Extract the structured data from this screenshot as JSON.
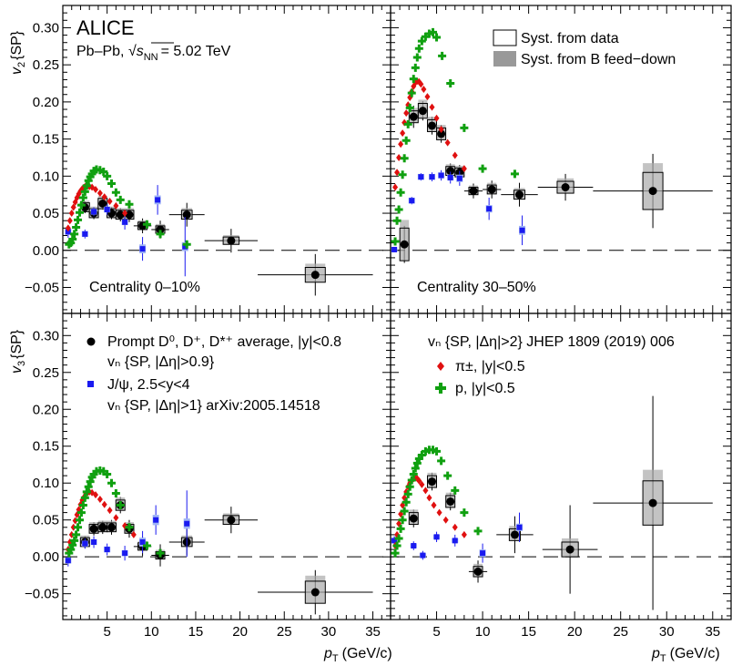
{
  "page": {
    "experiment": "ALICE",
    "system_text": "Pb–Pb,",
    "energy_sqrt": "s",
    "energy_sub": "NN",
    "energy_value": "= 5.02 TeV"
  },
  "axes": {
    "x_label_main": "p",
    "x_label_sub": "T",
    "x_label_units": "(GeV/c)",
    "y_label_top": "v",
    "y_label_top_sub": "2",
    "y_label_top_suffix": "{SP}",
    "y_label_bottom": "v",
    "y_label_bottom_sub": "3",
    "y_label_bottom_suffix": "{SP}",
    "x_ticks": [
      "5",
      "10",
      "15",
      "20",
      "25",
      "30",
      "35"
    ],
    "y_ticks": [
      "−0.05",
      "0.00",
      "0.05",
      "0.10",
      "0.15",
      "0.20",
      "0.25",
      "0.30"
    ]
  },
  "centrality_labels": [
    "Centrality 0–10%",
    "Centrality 30–50%"
  ],
  "legend_syst": {
    "data": "Syst. from data",
    "feeddown": "Syst. from B feed−down"
  },
  "legend_left": {
    "d_line1": "Prompt D⁰, D⁺, D*⁺ average, |y|<0.8",
    "d_line2": "vₙ {SP, |Δη|>0.9}",
    "jpsi_line1": "J/ψ, 2.5<y<4",
    "jpsi_line2": "vₙ {SP, |Δη|>1} arXiv:2005.14518"
  },
  "legend_right": {
    "header": "vₙ {SP, |Δη|>2} JHEP 1809 (2019) 006",
    "pion": "π±, |y|<0.5",
    "proton": "p, |y|<0.5"
  },
  "colors": {
    "dmeson": "#000000",
    "jpsi": "#1a1af0",
    "pion": "#e01010",
    "proton": "#10a010",
    "syst_data": "#000000",
    "syst_feeddown": "#999999"
  },
  "chart_data": [
    {
      "type": "scatter",
      "panel": "v2, centrality 0-10%",
      "xlim": [
        0,
        37
      ],
      "ylim": [
        -0.085,
        0.33
      ],
      "series": [
        {
          "name": "Prompt D0, D+, D*+ average, |y|<0.8",
          "x": [
            2.5,
            3.5,
            4.5,
            5.5,
            6.5,
            7.5,
            9,
            11,
            14,
            19,
            28.5
          ],
          "y": [
            0.058,
            0.05,
            0.063,
            0.05,
            0.048,
            0.048,
            0.033,
            0.028,
            0.048,
            0.013,
            -0.033
          ],
          "yerr": [
            0.008,
            0.008,
            0.008,
            0.008,
            0.009,
            0.01,
            0.01,
            0.012,
            0.016,
            0.016,
            0.028
          ],
          "xerr": [
            0.5,
            0.5,
            0.5,
            0.5,
            0.5,
            0.5,
            1.0,
            1.0,
            2.0,
            3.0,
            6.5
          ],
          "syst": [
            0.006,
            0.006,
            0.007,
            0.006,
            0.006,
            0.006,
            0.005,
            0.005,
            0.006,
            0.005,
            0.01
          ]
        },
        {
          "name": "J/ψ, 2.5<y<4",
          "x": [
            0.6,
            2.5,
            3.5,
            5.0,
            7.0,
            9.0,
            10.7,
            13.8
          ],
          "y": [
            0.025,
            0.022,
            0.052,
            0.055,
            0.038,
            0.002,
            0.068,
            0.005
          ],
          "yerr": [
            0.008,
            0.006,
            0.006,
            0.007,
            0.01,
            0.016,
            0.02,
            0.04
          ],
          "syst": [
            0.004,
            0.004,
            0.004,
            0.004,
            0.004,
            0.006,
            0.006,
            0.006
          ]
        },
        {
          "name": "π±, |y|<0.5",
          "x": [
            0.6,
            0.8,
            1.0,
            1.2,
            1.4,
            1.6,
            1.8,
            2.0,
            2.2,
            2.4,
            2.6,
            2.8,
            3.0,
            3.3,
            3.7,
            4.2,
            4.7,
            5.3,
            6.0,
            7.0
          ],
          "y": [
            0.03,
            0.04,
            0.05,
            0.058,
            0.065,
            0.071,
            0.076,
            0.08,
            0.083,
            0.085,
            0.087,
            0.087,
            0.086,
            0.085,
            0.082,
            0.077,
            0.072,
            0.066,
            0.06,
            0.05
          ]
        },
        {
          "name": "p, |y|<0.5",
          "x": [
            0.7,
            0.9,
            1.1,
            1.3,
            1.5,
            1.7,
            1.9,
            2.1,
            2.3,
            2.5,
            2.7,
            2.9,
            3.1,
            3.3,
            3.5,
            3.8,
            4.2,
            4.6,
            5.0,
            5.5,
            6.0,
            6.5,
            7.5,
            9.5,
            11.0,
            14.0
          ],
          "y": [
            0.008,
            0.01,
            0.015,
            0.022,
            0.031,
            0.041,
            0.051,
            0.061,
            0.071,
            0.079,
            0.087,
            0.094,
            0.099,
            0.103,
            0.107,
            0.109,
            0.108,
            0.106,
            0.1,
            0.09,
            0.078,
            0.068,
            0.062,
            0.035,
            0.022,
            0.008
          ]
        }
      ]
    },
    {
      "type": "scatter",
      "panel": "v2, centrality 30-50%",
      "xlim": [
        0,
        37
      ],
      "ylim": [
        -0.085,
        0.33
      ],
      "series": [
        {
          "name": "Prompt D0, D+, D*+ average, |y|<0.8",
          "x": [
            1.5,
            2.5,
            3.5,
            4.5,
            5.5,
            6.5,
            7.5,
            9,
            11,
            14,
            19,
            28.5
          ],
          "y": [
            0.008,
            0.18,
            0.188,
            0.168,
            0.157,
            0.107,
            0.105,
            0.08,
            0.082,
            0.075,
            0.085,
            0.08
          ],
          "yerr": [
            0.025,
            0.015,
            0.013,
            0.012,
            0.012,
            0.01,
            0.01,
            0.01,
            0.012,
            0.016,
            0.018,
            0.05
          ],
          "xerr": [
            0.5,
            0.5,
            0.5,
            0.5,
            0.5,
            0.5,
            0.5,
            1.0,
            1.0,
            2.0,
            3.0,
            6.5
          ],
          "syst": [
            0.022,
            0.008,
            0.01,
            0.008,
            0.008,
            0.006,
            0.006,
            0.005,
            0.006,
            0.006,
            0.008,
            0.025
          ]
        },
        {
          "name": "J/ψ, 2.5<y<4",
          "x": [
            0.4,
            2.3,
            3.3,
            4.5,
            5.5,
            6.5,
            7.5,
            10.7,
            14.3
          ],
          "y": [
            0.001,
            0.067,
            0.099,
            0.099,
            0.101,
            0.098,
            0.097,
            0.056,
            0.027
          ],
          "yerr": [
            0.003,
            0.005,
            0.005,
            0.006,
            0.007,
            0.008,
            0.01,
            0.015,
            0.02
          ],
          "syst": [
            0.003,
            0.004,
            0.004,
            0.004,
            0.004,
            0.004,
            0.005,
            0.005,
            0.006
          ]
        },
        {
          "name": "π±, |y|<0.5",
          "x": [
            0.5,
            0.7,
            0.9,
            1.1,
            1.3,
            1.5,
            1.7,
            1.9,
            2.1,
            2.3,
            2.5,
            2.7,
            2.9,
            3.1,
            3.3,
            3.6,
            4.0,
            4.5,
            5.0,
            5.5,
            6.2,
            7.0,
            8.0
          ],
          "y": [
            0.085,
            0.105,
            0.125,
            0.143,
            0.158,
            0.172,
            0.185,
            0.196,
            0.206,
            0.214,
            0.221,
            0.226,
            0.228,
            0.227,
            0.224,
            0.217,
            0.207,
            0.193,
            0.178,
            0.163,
            0.145,
            0.128,
            0.11
          ]
        },
        {
          "name": "p, |y|<0.5",
          "x": [
            0.5,
            0.7,
            0.9,
            1.1,
            1.3,
            1.5,
            1.7,
            1.9,
            2.1,
            2.3,
            2.5,
            2.7,
            2.9,
            3.1,
            3.4,
            3.8,
            4.2,
            4.6,
            5.0,
            5.6,
            6.5,
            8.0,
            10.0,
            13.5
          ],
          "y": [
            0.012,
            0.04,
            0.055,
            0.078,
            0.102,
            0.124,
            0.148,
            0.17,
            0.192,
            0.212,
            0.231,
            0.246,
            0.26,
            0.272,
            0.282,
            0.288,
            0.292,
            0.294,
            0.287,
            0.262,
            0.225,
            0.165,
            0.11,
            0.103
          ]
        }
      ]
    },
    {
      "type": "scatter",
      "panel": "v3, centrality 0-10%",
      "xlim": [
        0,
        37
      ],
      "ylim": [
        -0.085,
        0.33
      ],
      "series": [
        {
          "name": "Prompt D0, D+, D*+ average, |y|<0.8",
          "x": [
            2.5,
            3.5,
            4.5,
            5.5,
            6.5,
            7.5,
            9,
            11,
            14,
            19,
            28.5
          ],
          "y": [
            0.02,
            0.038,
            0.04,
            0.04,
            0.07,
            0.038,
            0.014,
            0.002,
            0.02,
            0.05,
            -0.048
          ],
          "yerr": [
            0.008,
            0.009,
            0.009,
            0.01,
            0.011,
            0.012,
            0.013,
            0.015,
            0.018,
            0.018,
            0.03
          ],
          "xerr": [
            0.5,
            0.5,
            0.5,
            0.5,
            0.5,
            0.5,
            1.0,
            1.0,
            2.0,
            3.0,
            6.5
          ],
          "syst": [
            0.006,
            0.006,
            0.006,
            0.006,
            0.007,
            0.006,
            0.005,
            0.005,
            0.006,
            0.006,
            0.015
          ]
        },
        {
          "name": "J/ψ, 2.5<y<4",
          "x": [
            0.6,
            2.5,
            3.5,
            5.0,
            7.0,
            9.0,
            10.5,
            14.0
          ],
          "y": [
            -0.005,
            0.018,
            0.02,
            0.01,
            0.005,
            0.02,
            0.05,
            0.045
          ],
          "yerr": [
            0.008,
            0.007,
            0.008,
            0.008,
            0.01,
            0.015,
            0.02,
            0.045
          ],
          "syst": [
            0.004,
            0.004,
            0.004,
            0.004,
            0.004,
            0.006,
            0.007,
            0.007
          ]
        },
        {
          "name": "π±, |y|<0.5",
          "x": [
            0.6,
            0.8,
            1.0,
            1.2,
            1.4,
            1.6,
            1.8,
            2.0,
            2.2,
            2.4,
            2.6,
            2.8,
            3.0,
            3.3,
            3.7,
            4.2,
            4.7,
            5.3,
            6.0,
            7.0,
            8.0
          ],
          "y": [
            0.01,
            0.02,
            0.03,
            0.04,
            0.049,
            0.057,
            0.064,
            0.071,
            0.077,
            0.081,
            0.085,
            0.087,
            0.088,
            0.087,
            0.084,
            0.078,
            0.071,
            0.063,
            0.053,
            0.042,
            0.03
          ]
        },
        {
          "name": "p, |y|<0.5",
          "x": [
            0.7,
            0.9,
            1.1,
            1.3,
            1.5,
            1.7,
            1.9,
            2.1,
            2.3,
            2.5,
            2.7,
            2.9,
            3.1,
            3.3,
            3.5,
            3.8,
            4.2,
            4.6,
            5.0,
            5.5,
            6.0,
            6.5,
            7.5,
            9.5,
            11.0
          ],
          "y": [
            0.005,
            0.01,
            0.016,
            0.022,
            0.03,
            0.04,
            0.05,
            0.06,
            0.07,
            0.08,
            0.088,
            0.095,
            0.102,
            0.108,
            0.112,
            0.116,
            0.117,
            0.116,
            0.112,
            0.1,
            0.086,
            0.07,
            0.04,
            0.015,
            0.005
          ]
        }
      ]
    },
    {
      "type": "scatter",
      "panel": "v3, centrality 30-50%",
      "xlim": [
        0,
        37
      ],
      "ylim": [
        -0.085,
        0.33
      ],
      "series": [
        {
          "name": "Prompt D0, D+, D*+ average, |y|<0.8",
          "x": [
            2.5,
            4.5,
            6.5,
            9.5,
            13.5,
            19.5,
            28.5
          ],
          "y": [
            0.052,
            0.102,
            0.075,
            -0.02,
            0.03,
            0.01,
            0.073
          ],
          "yerr": [
            0.012,
            0.012,
            0.012,
            0.015,
            0.025,
            0.06,
            0.145
          ],
          "xerr": [
            0.5,
            0.5,
            0.5,
            1.0,
            2.0,
            3.0,
            6.5
          ],
          "syst": [
            0.008,
            0.008,
            0.008,
            0.007,
            0.008,
            0.01,
            0.03
          ]
        },
        {
          "name": "J/ψ, 2.5<y<4",
          "x": [
            0.4,
            2.5,
            3.5,
            5.0,
            7.0,
            10.0,
            14.0
          ],
          "y": [
            0.022,
            0.015,
            0.002,
            0.027,
            0.022,
            0.005,
            0.04
          ],
          "yerr": [
            0.006,
            0.006,
            0.006,
            0.007,
            0.008,
            0.013,
            0.02
          ],
          "syst": [
            0.003,
            0.003,
            0.003,
            0.003,
            0.003,
            0.005,
            0.005
          ]
        },
        {
          "name": "π±, |y|<0.5",
          "x": [
            0.5,
            0.7,
            0.9,
            1.1,
            1.3,
            1.5,
            1.7,
            1.9,
            2.1,
            2.3,
            2.5,
            2.7,
            2.9,
            3.1,
            3.4,
            3.8,
            4.2,
            4.7,
            5.3,
            6.0,
            7.0,
            8.0
          ],
          "y": [
            0.015,
            0.03,
            0.045,
            0.058,
            0.07,
            0.08,
            0.088,
            0.095,
            0.1,
            0.104,
            0.106,
            0.107,
            0.106,
            0.103,
            0.098,
            0.09,
            0.08,
            0.07,
            0.06,
            0.05,
            0.04,
            0.03
          ]
        },
        {
          "name": "p, |y|<0.5",
          "x": [
            0.5,
            0.7,
            0.9,
            1.1,
            1.3,
            1.5,
            1.7,
            1.9,
            2.1,
            2.3,
            2.5,
            2.7,
            2.9,
            3.1,
            3.4,
            3.8,
            4.2,
            4.6,
            5.0,
            5.5,
            6.2,
            7.0,
            8.0,
            9.5
          ],
          "y": [
            0.005,
            0.015,
            0.025,
            0.038,
            0.05,
            0.062,
            0.074,
            0.085,
            0.095,
            0.104,
            0.112,
            0.12,
            0.127,
            0.133,
            0.138,
            0.143,
            0.145,
            0.145,
            0.143,
            0.13,
            0.11,
            0.09,
            0.06,
            0.035
          ]
        }
      ]
    }
  ]
}
